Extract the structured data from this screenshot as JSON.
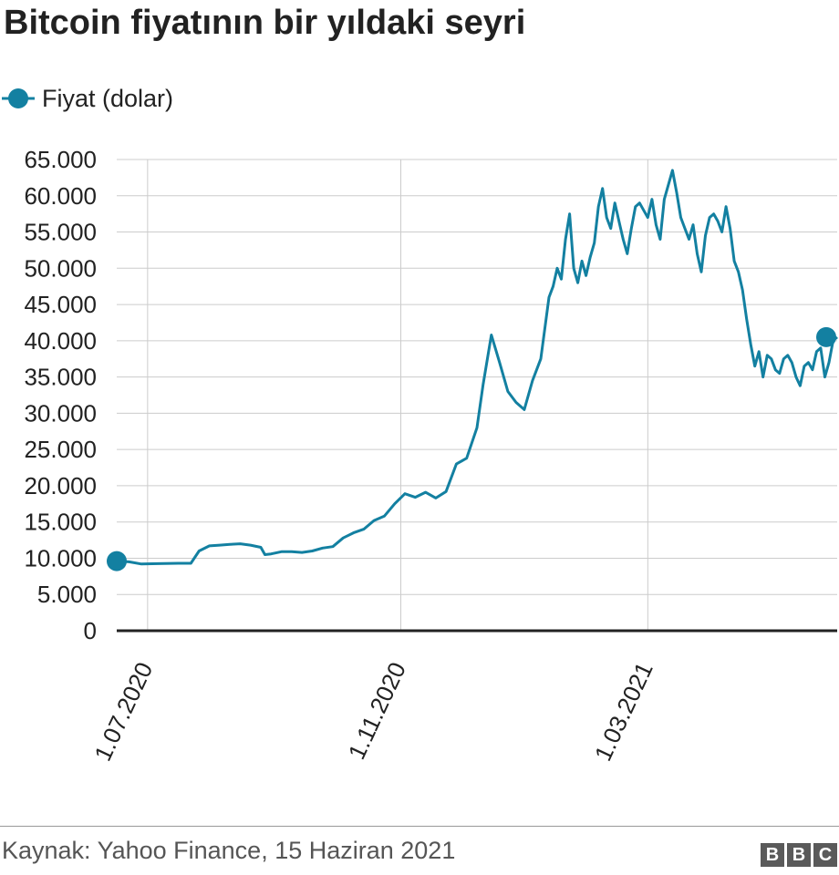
{
  "title": "Bitcoin fiyatının bir yıldaki seyri",
  "legend": {
    "label": "Fiyat (dolar)"
  },
  "source": "Kaynak: Yahoo Finance, 15 Haziran 2021",
  "logo": [
    "B",
    "B",
    "C"
  ],
  "colors": {
    "line": "#1380a1",
    "grid": "#cccccc",
    "axis": "#222222"
  },
  "chart_data": {
    "type": "line",
    "title": "Bitcoin fiyatının bir yıldaki seyri",
    "xlabel": "",
    "ylabel": "",
    "ylim": [
      0,
      65000
    ],
    "yticks": [
      0,
      5000,
      10000,
      15000,
      20000,
      25000,
      30000,
      35000,
      40000,
      45000,
      50000,
      55000,
      60000,
      65000
    ],
    "ytick_labels": [
      "0",
      "5.000",
      "10.000",
      "15.000",
      "20.000",
      "25.000",
      "30.000",
      "35.000",
      "40.000",
      "45.000",
      "50.000",
      "55.000",
      "60.000",
      "65.000"
    ],
    "xlim_days": [
      0,
      350
    ],
    "xticks_days": [
      15,
      138,
      258
    ],
    "xtick_labels": [
      "1.07.2020",
      "1.11.2020",
      "1.03.2021"
    ],
    "legend_position": "top-left",
    "series": [
      {
        "name": "Fiyat (dolar)",
        "x_days": [
          0,
          6,
          12,
          20,
          30,
          36,
          40,
          45,
          50,
          55,
          60,
          65,
          70,
          72,
          75,
          80,
          85,
          90,
          95,
          100,
          105,
          110,
          115,
          120,
          125,
          130,
          135,
          140,
          145,
          150,
          155,
          160,
          165,
          170,
          175,
          178,
          182,
          186,
          190,
          194,
          198,
          202,
          206,
          210,
          212,
          214,
          216,
          218,
          220,
          222,
          224,
          226,
          228,
          230,
          232,
          234,
          236,
          238,
          240,
          242,
          244,
          246,
          248,
          250,
          252,
          254,
          256,
          258,
          260,
          262,
          264,
          266,
          268,
          270,
          272,
          274,
          276,
          278,
          280,
          282,
          284,
          286,
          288,
          290,
          292,
          294,
          296,
          298,
          300,
          302,
          304,
          306,
          308,
          310,
          312,
          314,
          316,
          318,
          320,
          322,
          324,
          326,
          328,
          330,
          332,
          334,
          336,
          338,
          340,
          342,
          344,
          346,
          348,
          350
        ],
        "values": [
          9600,
          9500,
          9200,
          9250,
          9300,
          9300,
          11000,
          11700,
          11800,
          11900,
          12000,
          11800,
          11500,
          10500,
          10600,
          10900,
          10900,
          10800,
          11000,
          11400,
          11600,
          12800,
          13500,
          14000,
          15200,
          15800,
          17500,
          18900,
          18400,
          19100,
          18300,
          19200,
          23000,
          23800,
          28000,
          34000,
          40800,
          37000,
          33000,
          31500,
          30500,
          34500,
          37500,
          46000,
          47500,
          50000,
          48500,
          54000,
          57500,
          50000,
          48000,
          51000,
          49000,
          51500,
          53500,
          58500,
          61000,
          57000,
          55500,
          59000,
          56500,
          54000,
          52000,
          55500,
          58500,
          59000,
          58000,
          57000,
          59500,
          56000,
          54000,
          59500,
          61500,
          63500,
          60500,
          57000,
          55500,
          54000,
          56000,
          52000,
          49500,
          54500,
          57000,
          57500,
          56500,
          55000,
          58500,
          55500,
          51000,
          49500,
          47000,
          43000,
          39500,
          36500,
          38500,
          35000,
          38000,
          37500,
          36000,
          35500,
          37500,
          38000,
          37000,
          35000,
          33800,
          36500,
          37000,
          36000,
          38500,
          39000,
          35000,
          37000,
          40000,
          40500
        ]
      }
    ]
  }
}
